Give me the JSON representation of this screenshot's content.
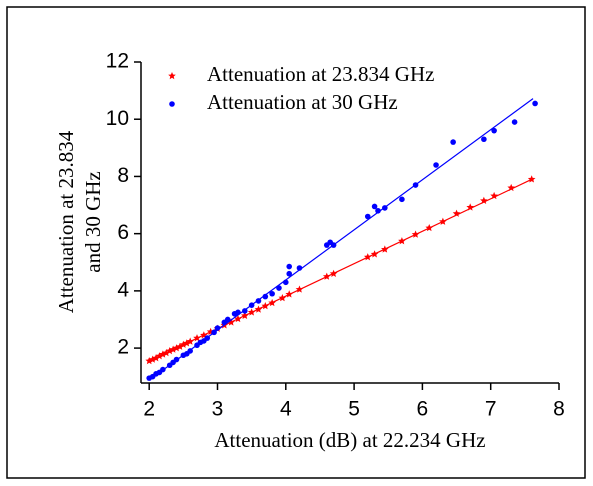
{
  "chart_data": {
    "type": "scatter",
    "x_label": "Attenuation (dB) at 22.234 GHz",
    "y_label": [
      "Attenuation at 23.834",
      "and 30 GHz"
    ],
    "xlim": [
      1.88,
      8
    ],
    "ylim": [
      0.78,
      12
    ],
    "xticks": [
      2,
      3,
      4,
      5,
      6,
      7,
      8
    ],
    "yticks": [
      2,
      4,
      6,
      8,
      10,
      12
    ],
    "legend": "top-left",
    "series": [
      {
        "name": "Attenuation at 23.834 GHz",
        "color": "#ff0000",
        "marker": "star",
        "x": [
          2.0,
          2.05,
          2.1,
          2.15,
          2.2,
          2.25,
          2.3,
          2.35,
          2.4,
          2.45,
          2.5,
          2.55,
          2.6,
          2.7,
          2.8,
          2.9,
          3.0,
          3.1,
          3.2,
          3.3,
          3.4,
          3.5,
          3.6,
          3.7,
          3.8,
          3.95,
          4.05,
          4.2,
          4.6,
          4.7,
          5.2,
          5.3,
          5.45,
          5.7,
          5.9,
          6.1,
          6.3,
          6.5,
          6.7,
          6.9,
          7.05,
          7.3,
          7.6
        ],
        "values": [
          1.55,
          1.6,
          1.65,
          1.72,
          1.78,
          1.83,
          1.9,
          1.95,
          2.0,
          2.05,
          2.12,
          2.17,
          2.23,
          2.35,
          2.45,
          2.57,
          2.68,
          2.8,
          2.9,
          3.02,
          3.13,
          3.25,
          3.35,
          3.47,
          3.58,
          3.75,
          3.88,
          4.05,
          4.5,
          4.6,
          5.18,
          5.28,
          5.45,
          5.74,
          5.97,
          6.2,
          6.42,
          6.7,
          6.92,
          7.15,
          7.32,
          7.6,
          7.9
        ],
        "fit": {
          "x": [
            2.0,
            7.62
          ],
          "y": [
            1.55,
            7.92
          ]
        }
      },
      {
        "name": "Attenuation at 30 GHz",
        "color": "#0000ff",
        "marker": "circle",
        "x": [
          2.0,
          2.05,
          2.1,
          2.15,
          2.2,
          2.3,
          2.35,
          2.4,
          2.5,
          2.55,
          2.6,
          2.7,
          2.75,
          2.8,
          2.85,
          2.95,
          3.0,
          3.1,
          3.15,
          3.25,
          3.3,
          3.4,
          3.5,
          3.6,
          3.7,
          3.8,
          3.9,
          4.0,
          4.05,
          4.05,
          4.2,
          4.6,
          4.65,
          4.7,
          5.2,
          5.3,
          5.35,
          5.45,
          5.7,
          5.9,
          6.2,
          6.45,
          6.9,
          7.05,
          7.35,
          7.65
        ],
        "values": [
          0.95,
          1.0,
          1.1,
          1.15,
          1.25,
          1.4,
          1.5,
          1.6,
          1.75,
          1.8,
          1.9,
          2.1,
          2.2,
          2.25,
          2.35,
          2.55,
          2.7,
          2.9,
          3.0,
          3.2,
          3.25,
          3.3,
          3.5,
          3.65,
          3.8,
          3.9,
          4.1,
          4.3,
          4.6,
          4.85,
          4.8,
          5.6,
          5.7,
          5.6,
          6.6,
          6.95,
          6.8,
          6.9,
          7.2,
          7.7,
          8.4,
          9.2,
          9.3,
          9.6,
          9.9,
          10.55
        ],
        "fit": {
          "x": [
            2.0,
            7.62
          ],
          "y": [
            0.88,
            10.72
          ]
        }
      }
    ]
  }
}
